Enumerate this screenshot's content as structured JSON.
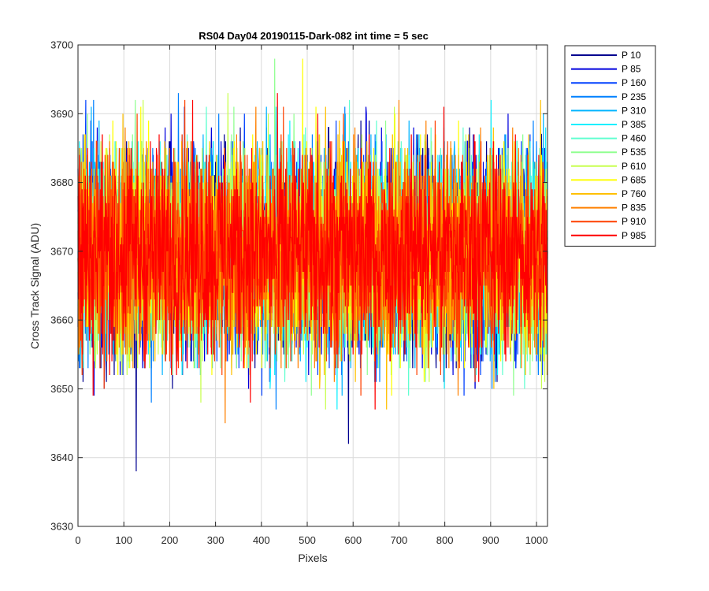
{
  "chart_data": {
    "type": "line",
    "title": "RS04 Day04 20190115-Dark-082 int time = 5 sec",
    "xlabel": "Pixels",
    "ylabel": "Cross Track Signal (ADU)",
    "xlim": [
      0,
      1024
    ],
    "ylim": [
      3630,
      3700
    ],
    "xticks": [
      0,
      100,
      200,
      300,
      400,
      500,
      600,
      700,
      800,
      900,
      1000
    ],
    "yticks": [
      3630,
      3640,
      3650,
      3660,
      3670,
      3680,
      3690,
      3700
    ],
    "grid": true,
    "legend_position": "outside-top-right",
    "noise": {
      "mean": 3670,
      "typical_range": [
        3650,
        3692
      ],
      "seed": 82
    },
    "extremes": [
      {
        "x": 127,
        "y": 3638,
        "series": "P 10"
      },
      {
        "x": 590,
        "y": 3642,
        "series": "P 10"
      },
      {
        "x": 429,
        "y": 3698,
        "series": "P 535"
      },
      {
        "x": 490,
        "y": 3698,
        "series": "P 685"
      },
      {
        "x": 321,
        "y": 3645,
        "series": "P 835"
      }
    ],
    "series": [
      {
        "name": "P 10",
        "color": "#000090"
      },
      {
        "name": "P 85",
        "color": "#0000dd"
      },
      {
        "name": "P 160",
        "color": "#0040ff"
      },
      {
        "name": "P 235",
        "color": "#0080ff"
      },
      {
        "name": "P 310",
        "color": "#00b4ff"
      },
      {
        "name": "P 385",
        "color": "#10f0ff"
      },
      {
        "name": "P 460",
        "color": "#60ffd0"
      },
      {
        "name": "P 535",
        "color": "#90ff90"
      },
      {
        "name": "P 610",
        "color": "#c8ff50"
      },
      {
        "name": "P 685",
        "color": "#ffff00"
      },
      {
        "name": "P 760",
        "color": "#ffc000"
      },
      {
        "name": "P 835",
        "color": "#ff8000"
      },
      {
        "name": "P 910",
        "color": "#ff4000"
      },
      {
        "name": "P 985",
        "color": "#ff0000"
      }
    ]
  }
}
